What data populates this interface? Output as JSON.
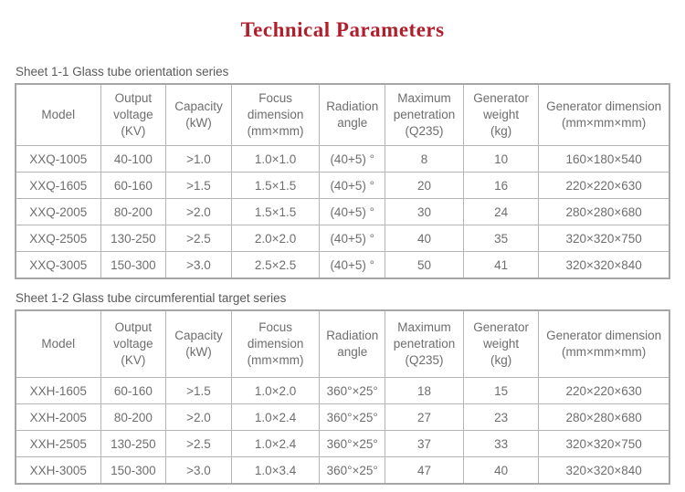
{
  "page": {
    "title": "Technical Parameters",
    "title_color": "#b01f2b",
    "text_color": "#6e6e6e",
    "border_color": "#b5b5b5"
  },
  "tables": [
    {
      "caption": "Sheet 1-1 Glass tube orientation series",
      "headers": [
        "Model",
        "Output\nvoltage\n(KV)",
        "Capacity\n(kW)",
        "Focus\ndimension\n(mm×mm)",
        "Radiation\nangle",
        "Maximum\npenetration\n(Q235)",
        "Generator\nweight\n(kg)",
        "Generator dimension\n(mm×mm×mm)"
      ],
      "rows": [
        [
          "XXQ-1005",
          "40-100",
          ">1.0",
          "1.0×1.0",
          "(40+5) °",
          "8",
          "10",
          "160×180×540"
        ],
        [
          "XXQ-1605",
          "60-160",
          ">1.5",
          "1.5×1.5",
          "(40+5) °",
          "20",
          "16",
          "220×220×630"
        ],
        [
          "XXQ-2005",
          "80-200",
          ">2.0",
          "1.5×1.5",
          "(40+5) °",
          "30",
          "24",
          "280×280×680"
        ],
        [
          "XXQ-2505",
          "130-250",
          ">2.5",
          "2.0×2.0",
          "(40+5) °",
          "40",
          "35",
          "320×320×750"
        ],
        [
          "XXQ-3005",
          "150-300",
          ">3.0",
          "2.5×2.5",
          "(40+5) °",
          "50",
          "41",
          "320×320×840"
        ]
      ]
    },
    {
      "caption": "Sheet 1-2 Glass tube circumferential target series",
      "headers": [
        "Model",
        "Output\nvoltage\n(KV)",
        "Capacity\n(kW)",
        "Focus\ndimension\n(mm×mm)",
        "Radiation\nangle",
        "Maximum\npenetration\n(Q235)",
        "Generator\nweight\n(kg)",
        "Generator dimension\n(mm×mm×mm)"
      ],
      "rows": [
        [
          "XXH-1605",
          "60-160",
          ">1.5",
          "1.0×2.0",
          "360°×25°",
          "18",
          "15",
          "220×220×630"
        ],
        [
          "XXH-2005",
          "80-200",
          ">2.0",
          "1.0×2.4",
          "360°×25°",
          "27",
          "23",
          "280×280×680"
        ],
        [
          "XXH-2505",
          "130-250",
          ">2.5",
          "1.0×2.4",
          "360°×25°",
          "37",
          "33",
          "320×320×750"
        ],
        [
          "XXH-3005",
          "150-300",
          ">3.0",
          "1.0×3.4",
          "360°×25°",
          "47",
          "40",
          "320×320×840"
        ]
      ]
    }
  ]
}
